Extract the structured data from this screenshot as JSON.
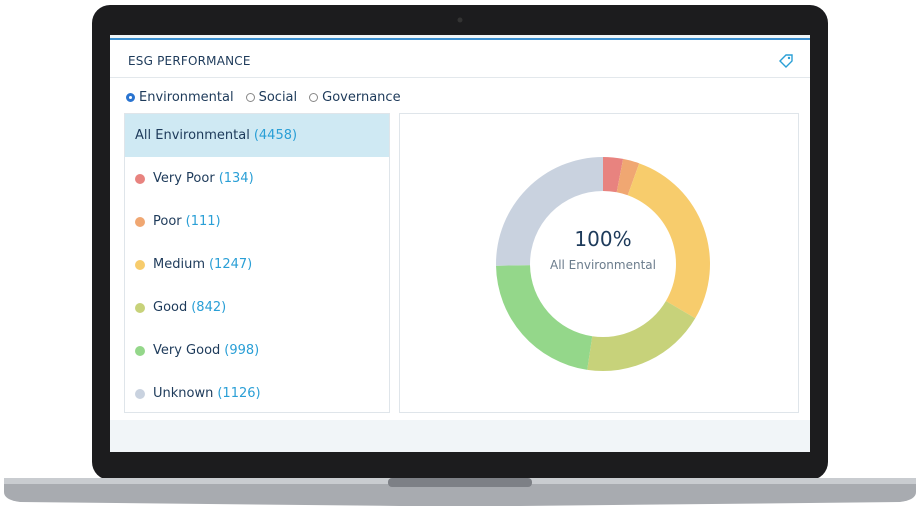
{
  "ui": {
    "title": "ESG PERFORMANCE",
    "tabs": [
      "Environmental",
      "Social",
      "Governance"
    ],
    "selected_tab": 0
  },
  "chart_data": {
    "type": "pie",
    "donut": true,
    "center_value": "100%",
    "center_label": "All Environmental",
    "total": {
      "value": 4458,
      "label": "(4458)"
    },
    "categories": [
      "Very Poor",
      "Poor",
      "Medium",
      "Good",
      "Very Good",
      "Unknown"
    ],
    "values": [
      134,
      111,
      1247,
      842,
      998,
      1126
    ],
    "value_labels": [
      "(134)",
      "(111)",
      "(1247)",
      "(842)",
      "(998)",
      "(1126)"
    ],
    "colors": [
      "#e8837f",
      "#f0a772",
      "#f7cc6c",
      "#c7d27a",
      "#94d78a",
      "#c9d2df"
    ]
  }
}
